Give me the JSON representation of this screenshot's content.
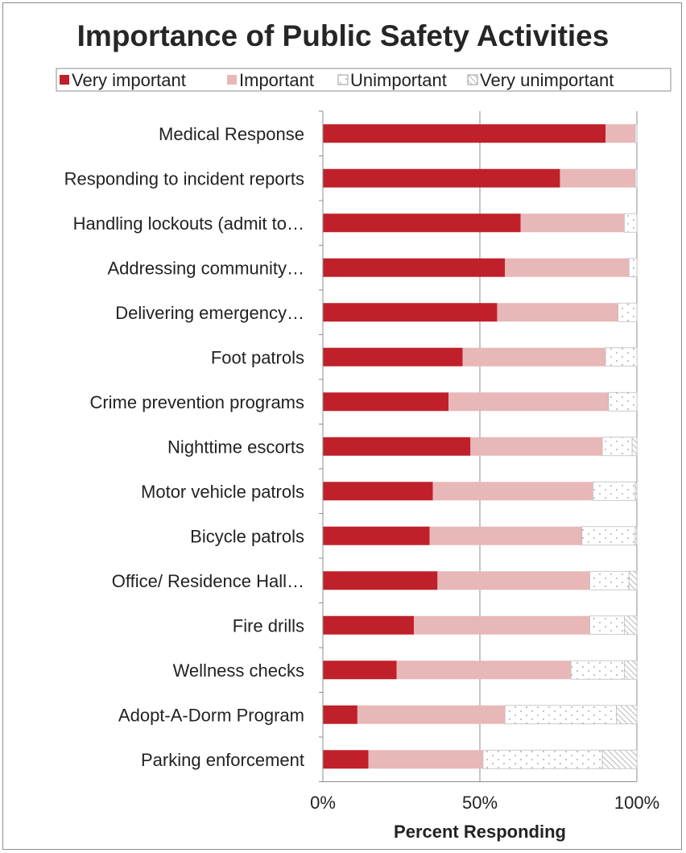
{
  "chart_data": {
    "type": "bar",
    "orientation": "horizontal",
    "stacked": "percent",
    "title": "Importance of Public Safety Activities",
    "xlabel": "Percent Responding",
    "ylabel": "",
    "xlim": [
      0,
      100
    ],
    "x_ticks": [
      "0%",
      "50%",
      "100%"
    ],
    "legend_position": "top",
    "grid": "vertical",
    "categories": [
      "Medical Response",
      "Responding to incident reports",
      "Handling lockouts (admit to…",
      "Addressing community…",
      "Delivering emergency…",
      "Foot patrols",
      "Crime prevention programs",
      "Nighttime escorts",
      "Motor vehicle patrols",
      "Bicycle patrols",
      "Office/ Residence Hall…",
      "Fire drills",
      "Wellness checks",
      "Adopt-A-Dorm Program",
      "Parking enforcement"
    ],
    "series": [
      {
        "name": "Very important",
        "color": "#c0202a",
        "pattern": "solid",
        "values": [
          90,
          75.5,
          63,
          58,
          55.5,
          44.5,
          40,
          47,
          35,
          34,
          36.5,
          29,
          23.5,
          11,
          14.5
        ]
      },
      {
        "name": "Important",
        "color": "#e8b7b8",
        "pattern": "solid",
        "values": [
          9.5,
          24,
          33,
          39.5,
          38.5,
          45.5,
          51,
          42,
          51,
          48.5,
          48.5,
          56,
          55.5,
          47,
          36.5
        ]
      },
      {
        "name": "Unimportant",
        "color": "#ffffff",
        "pattern": "dots",
        "values": [
          0.5,
          0.5,
          4,
          2.5,
          6,
          10,
          9,
          9.5,
          13.5,
          17,
          12.5,
          11,
          17,
          35.5,
          38
        ]
      },
      {
        "name": "Very unimportant",
        "color": "#ffffff",
        "pattern": "hatch",
        "values": [
          0,
          0,
          0,
          0,
          0,
          0,
          0,
          1.5,
          0.5,
          0.5,
          2.5,
          4,
          4,
          6.5,
          11
        ]
      }
    ]
  }
}
